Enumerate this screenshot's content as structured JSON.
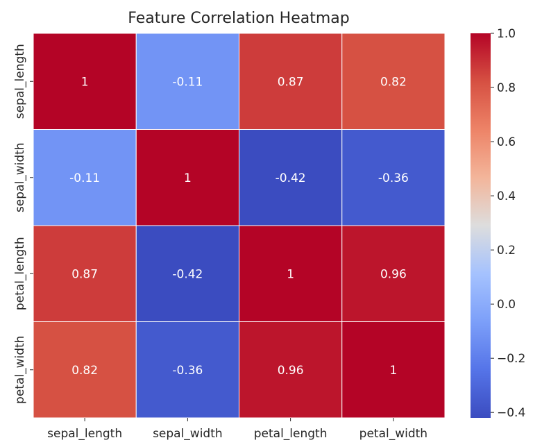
{
  "chart_data": {
    "type": "heatmap",
    "title": "Feature Correlation Heatmap",
    "xlabel": "",
    "ylabel": "",
    "x_categories": [
      "sepal_length",
      "sepal_width",
      "petal_length",
      "petal_width"
    ],
    "y_categories": [
      "sepal_length",
      "sepal_width",
      "petal_length",
      "petal_width"
    ],
    "values": [
      [
        1,
        -0.11,
        0.87,
        0.82
      ],
      [
        -0.11,
        1,
        -0.42,
        -0.36
      ],
      [
        0.87,
        -0.42,
        1,
        0.96
      ],
      [
        0.82,
        -0.36,
        0.96,
        1
      ]
    ],
    "cell_labels": [
      [
        "1",
        "-0.11",
        "0.87",
        "0.82"
      ],
      [
        "-0.11",
        "1",
        "-0.42",
        "-0.36"
      ],
      [
        "0.87",
        "-0.42",
        "1",
        "0.96"
      ],
      [
        "0.82",
        "-0.36",
        "0.96",
        "1"
      ]
    ],
    "colormap": "coolwarm",
    "value_range": [
      -0.42,
      1.0
    ],
    "colorbar": {
      "ticks": [
        1.0,
        0.8,
        0.6,
        0.4,
        0.2,
        0.0,
        -0.2,
        -0.4
      ],
      "tick_labels": [
        "1.0",
        "0.8",
        "0.6",
        "0.4",
        "0.2",
        "0.0",
        "−0.2",
        "−0.4"
      ],
      "position": "right"
    },
    "grid": true,
    "cell_border_color": "#ffffff"
  }
}
